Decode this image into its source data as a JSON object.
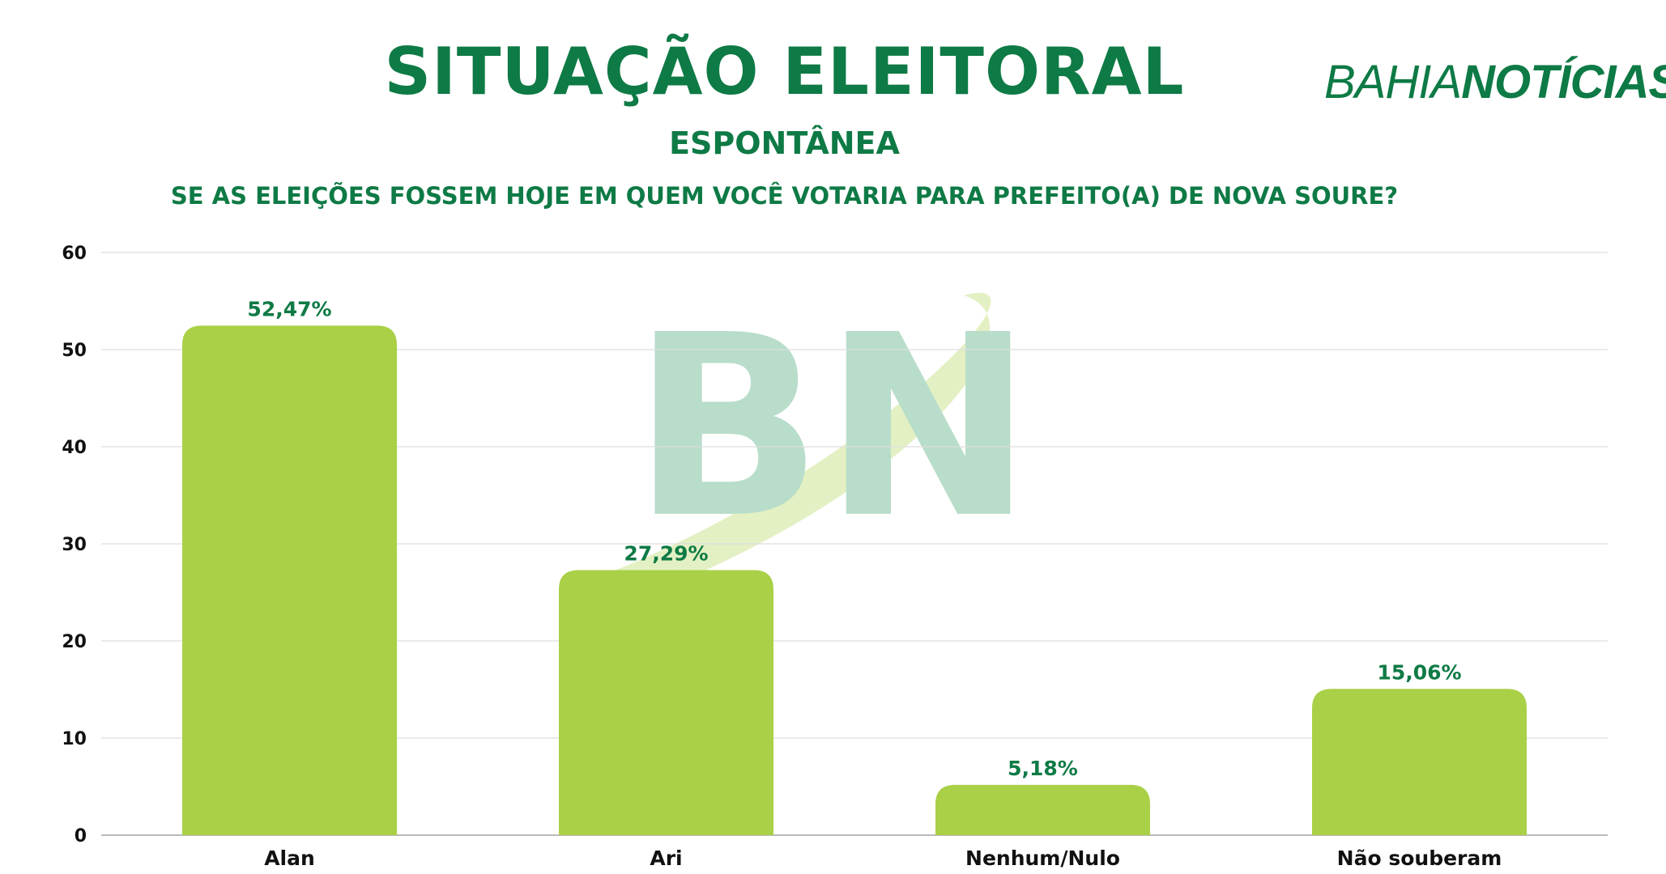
{
  "header": {
    "title": "SITUAÇÃO ELEITORAL",
    "subtitle": "ESPONTÂNEA",
    "question": "SE AS ELEIÇÕES FOSSEM HOJE EM QUEM VOCÊ VOTARIA PARA PREFEITO(A) DE NOVA SOURE?"
  },
  "logo": {
    "part1": "BAHIA",
    "part2": "NOTÍCIAS"
  },
  "watermark": {
    "text": "BN"
  },
  "colors": {
    "brand": "#0e7a45",
    "bar": "#a9d046",
    "grid": "#dddddd",
    "watermark": "#b9ddcb",
    "swoosh": "#e3f0c3"
  },
  "chart_data": {
    "type": "bar",
    "categories": [
      "Alan",
      "Ari",
      "Nenhum/Nulo",
      "Não souberam"
    ],
    "values": [
      52.47,
      27.29,
      5.18,
      15.06
    ],
    "data_labels": [
      "52,47%",
      "27,29%",
      "5,18%",
      "15,06%"
    ],
    "yticks": [
      0,
      10,
      20,
      30,
      40,
      50,
      60
    ],
    "ylim": [
      0,
      60
    ],
    "grid": true,
    "legend": false
  }
}
